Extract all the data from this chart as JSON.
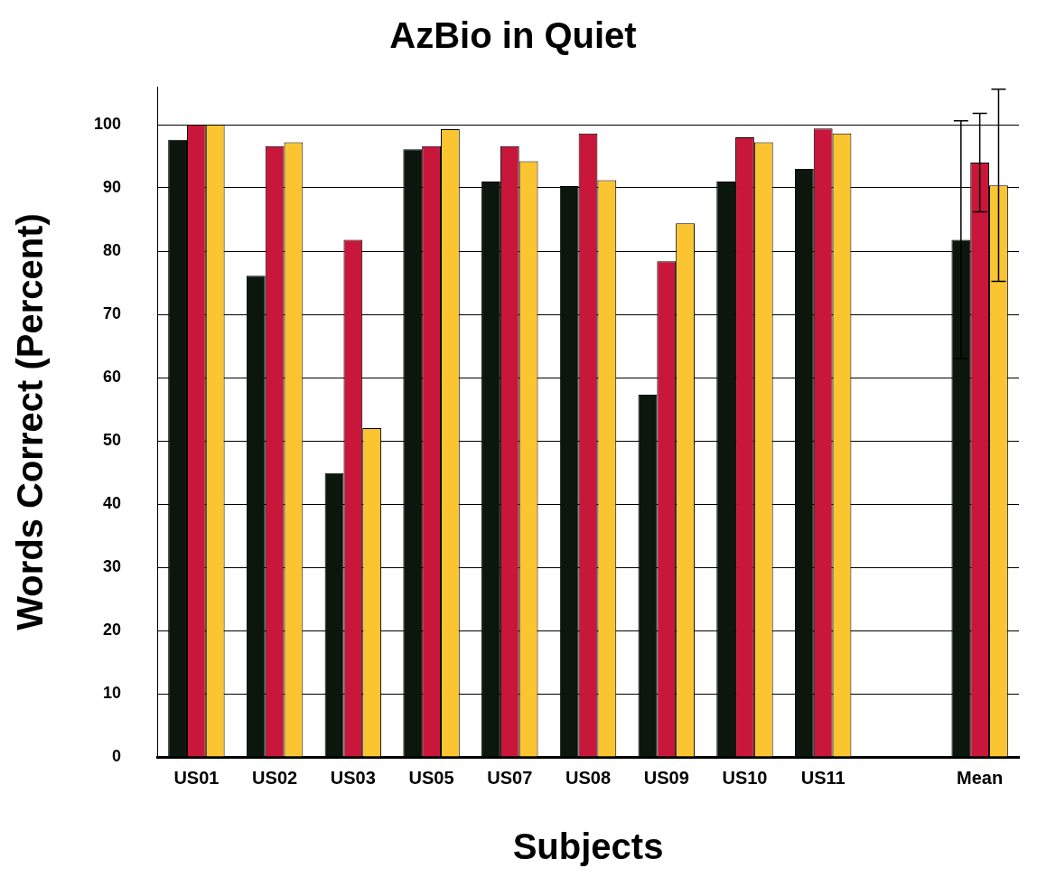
{
  "chart_data": {
    "type": "bar",
    "title": "AzBio in Quiet",
    "xlabel": "Subjects",
    "ylabel": "Words Correct (Percent)",
    "categories": [
      "US01",
      "US02",
      "US03",
      "US05",
      "US07",
      "US08",
      "US09",
      "US10",
      "US11",
      null,
      "Mean"
    ],
    "series": [
      {
        "color": "#0b170d",
        "values": [
          97.6,
          76.1,
          44.9,
          96.1,
          91,
          90.3,
          57.3,
          91,
          93,
          null,
          81.8
        ],
        "errors": [
          null,
          null,
          null,
          null,
          null,
          null,
          null,
          null,
          null,
          null,
          18.8
        ]
      },
      {
        "color": "#c8173a",
        "values": [
          100,
          96.6,
          81.8,
          96.6,
          96.6,
          98.6,
          78.4,
          98,
          99.4,
          null,
          94
        ],
        "errors": [
          null,
          null,
          null,
          null,
          null,
          null,
          null,
          null,
          null,
          null,
          7.8
        ]
      },
      {
        "color": "#fbc531",
        "values": [
          100,
          97.2,
          52,
          99.3,
          94.2,
          91.2,
          84.4,
          97.2,
          98.6,
          null,
          90.4
        ],
        "errors": [
          null,
          null,
          null,
          null,
          null,
          null,
          null,
          null,
          null,
          null,
          15.2
        ]
      }
    ],
    "ylim": [
      0,
      106
    ],
    "yticks": [
      0,
      10,
      20,
      30,
      40,
      50,
      60,
      70,
      80,
      90,
      100
    ],
    "grid": "y",
    "legend": false
  }
}
